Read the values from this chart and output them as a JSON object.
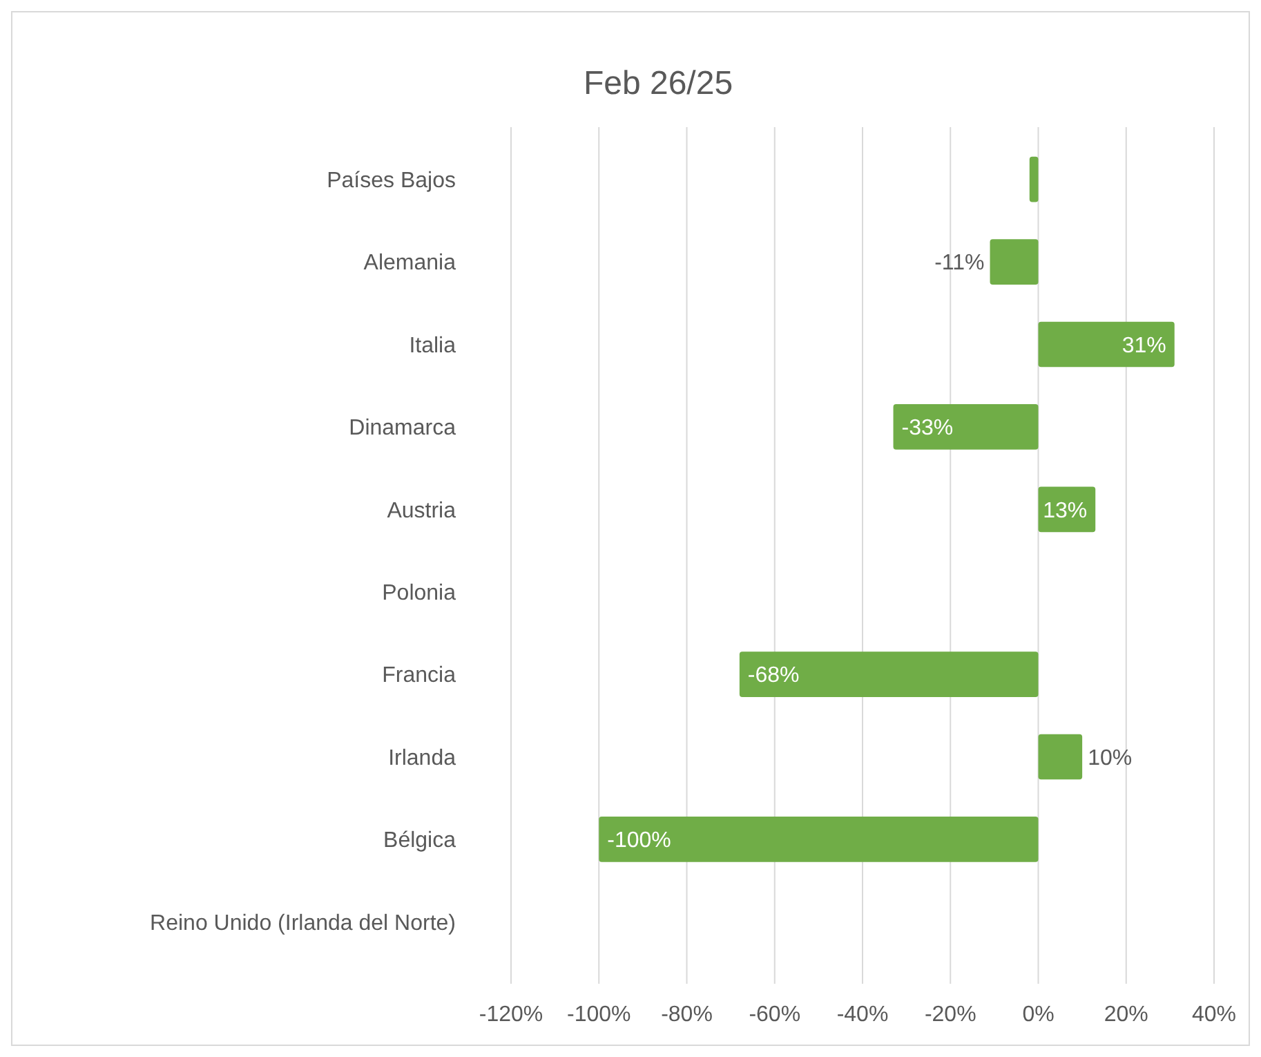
{
  "chart_data": {
    "type": "bar",
    "orientation": "horizontal",
    "title": "Feb 26/25",
    "categories": [
      "Países Bajos",
      "Alemania",
      "Italia",
      "Dinamarca",
      "Austria",
      "Polonia",
      "Francia",
      "Irlanda",
      "Bélgica",
      "Reino Unido (Irlanda del Norte)"
    ],
    "values": [
      -2,
      -11,
      31,
      -33,
      13,
      null,
      -68,
      10,
      -100,
      null
    ],
    "value_labels": [
      null,
      "-11%",
      "31%",
      "-33%",
      "13%",
      null,
      "-68%",
      "10%",
      "-100%",
      null
    ],
    "color": "#70ad47",
    "xlim": [
      -120,
      40
    ],
    "xticks": [
      {
        "value": -120,
        "label": "-120%"
      },
      {
        "value": -100,
        "label": "-100%"
      },
      {
        "value": -80,
        "label": "-80%"
      },
      {
        "value": -60,
        "label": "-60%"
      },
      {
        "value": -40,
        "label": "-40%"
      },
      {
        "value": -20,
        "label": "-20%"
      },
      {
        "value": 0,
        "label": "0%"
      },
      {
        "value": 20,
        "label": "20%"
      },
      {
        "value": 40,
        "label": "40%"
      }
    ],
    "grid": "x"
  }
}
